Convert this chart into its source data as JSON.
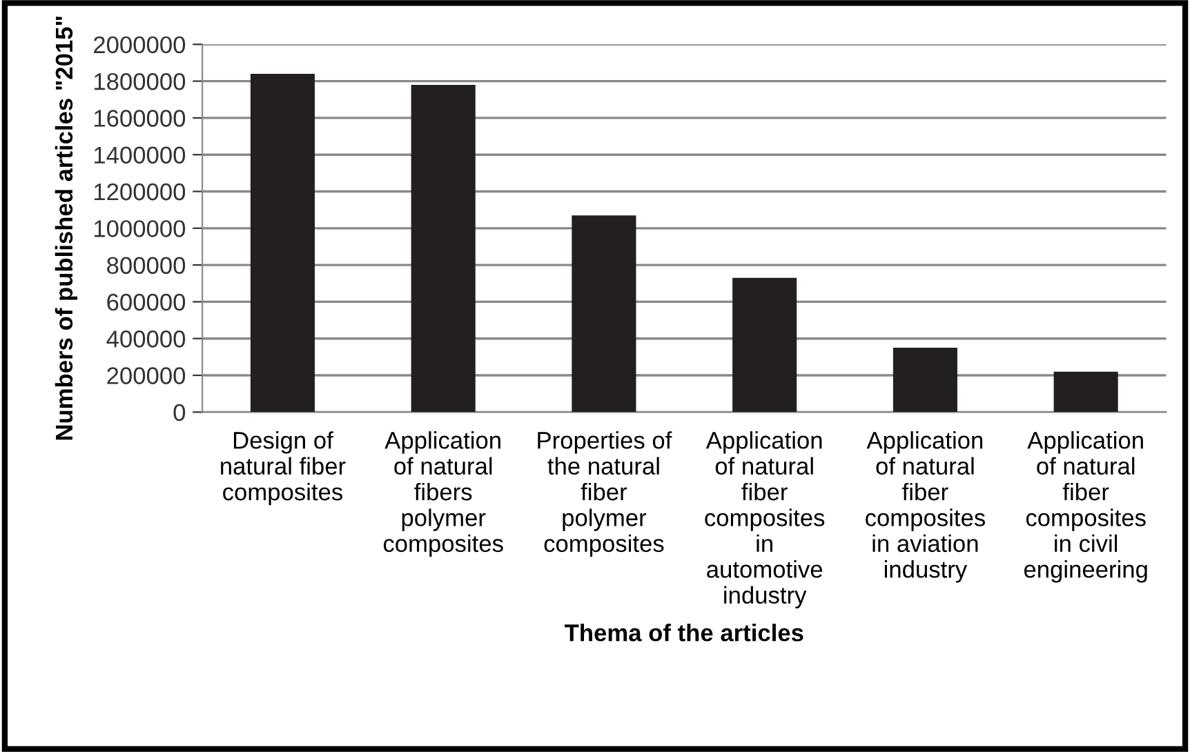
{
  "chart_data": {
    "type": "bar",
    "xlabel": "Thema of the articles",
    "ylabel": "Numbers of published articles \"2015\"",
    "categories": [
      "Design of\nnatural fiber\ncomposites",
      "Application\nof natural\nfibers\npolymer\ncomposites",
      "Properties of\nthe natural\nfiber\npolymer\ncomposites",
      "Application\nof natural\nfiber\ncomposites\nin\nautomotive\nindustry",
      "Application\nof natural\nfiber\ncomposites\nin aviation\nindustry",
      "Application\nof natural\nfiber\ncomposites\nin civil\nengineering"
    ],
    "values": [
      1840000,
      1780000,
      1070000,
      730000,
      350000,
      220000
    ],
    "color": "#231f20",
    "ylim": [
      0,
      2000000
    ],
    "yticks": [
      0,
      200000,
      400000,
      600000,
      800000,
      1000000,
      1200000,
      1400000,
      1600000,
      1800000,
      2000000
    ],
    "grid": "y"
  }
}
